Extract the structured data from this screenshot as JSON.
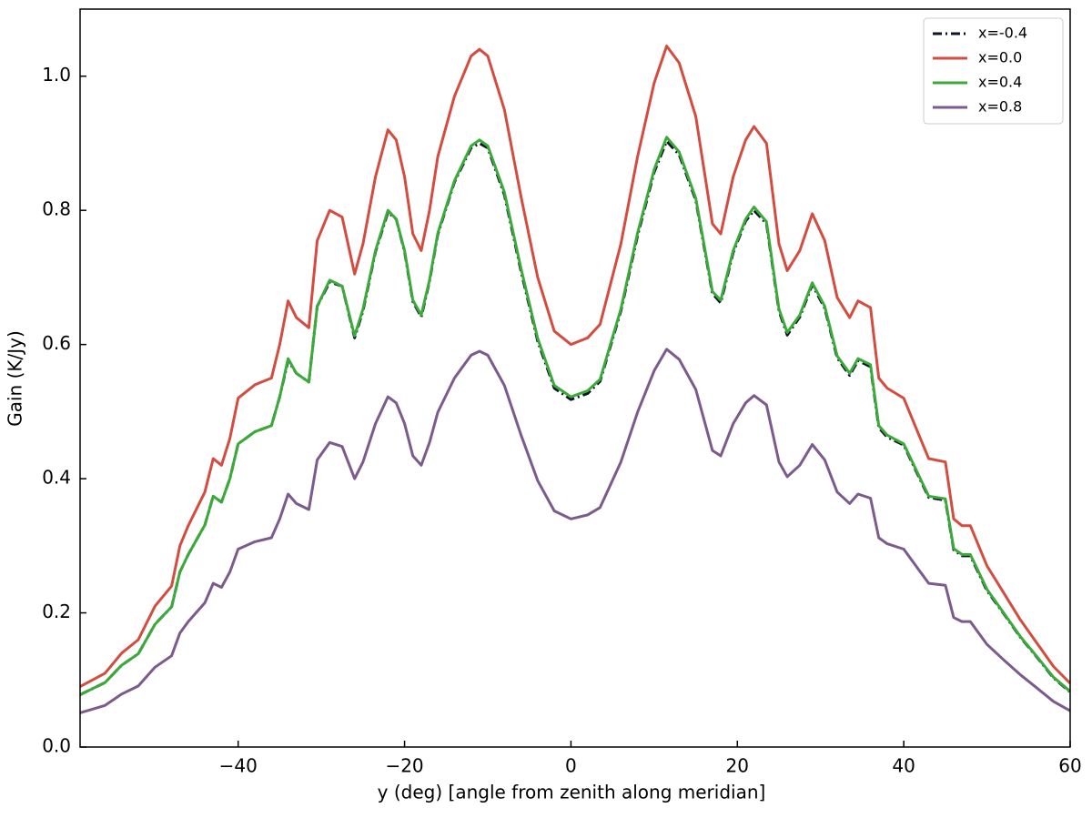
{
  "chart_data": {
    "type": "line",
    "xlabel": "y (deg) [angle from zenith along meridian]",
    "ylabel": "Gain (K/Jy)",
    "xlim": [
      -59,
      60
    ],
    "ylim": [
      0,
      1.1
    ],
    "xticks": [
      {
        "value": -40,
        "label": "−40"
      },
      {
        "value": -20,
        "label": "−20"
      },
      0,
      20,
      40,
      60
    ],
    "yticks": [
      {
        "value": 0,
        "label": "0.0"
      },
      0.2,
      0.4,
      0.6,
      0.8,
      {
        "value": 1,
        "label": "1.0"
      }
    ],
    "legend": "upper right",
    "x": [
      -59,
      -56,
      -54,
      -52,
      -50,
      -48,
      -47,
      -46,
      -44,
      -43,
      -42,
      -41,
      -40,
      -38,
      -36,
      -35,
      -34,
      -33,
      -31.5,
      -30.5,
      -29,
      -27.5,
      -26,
      -25,
      -23.5,
      -22,
      -21,
      -20,
      -19,
      -18,
      -17,
      -16,
      -14,
      -12,
      -11,
      -10,
      -8,
      -6,
      -4,
      -2,
      0,
      2,
      3.5,
      6,
      8,
      10,
      11.5,
      13,
      15,
      17,
      18,
      19.5,
      21,
      22,
      23.5,
      25,
      26,
      27.5,
      29,
      30.5,
      32,
      33.5,
      34.5,
      36,
      37,
      38,
      40,
      42,
      43,
      45,
      46,
      47,
      48,
      50,
      52,
      54,
      56,
      58,
      60
    ],
    "series": [
      {
        "name": "x=-0.4",
        "color": "#0f1428",
        "dashed": true,
        "values": [
          0.078,
          0.096,
          0.122,
          0.139,
          0.183,
          0.209,
          0.261,
          0.287,
          0.331,
          0.374,
          0.365,
          0.4,
          0.452,
          0.47,
          0.479,
          0.522,
          0.576,
          0.557,
          0.544,
          0.657,
          0.693,
          0.687,
          0.61,
          0.65,
          0.738,
          0.797,
          0.787,
          0.738,
          0.664,
          0.641,
          0.694,
          0.764,
          0.842,
          0.893,
          0.9,
          0.893,
          0.823,
          0.709,
          0.605,
          0.535,
          0.518,
          0.527,
          0.545,
          0.65,
          0.762,
          0.857,
          0.903,
          0.883,
          0.815,
          0.676,
          0.662,
          0.737,
          0.784,
          0.8,
          0.78,
          0.65,
          0.614,
          0.641,
          0.689,
          0.654,
          0.58,
          0.554,
          0.576,
          0.567,
          0.476,
          0.462,
          0.45,
          0.398,
          0.372,
          0.368,
          0.294,
          0.285,
          0.285,
          0.233,
          0.199,
          0.164,
          0.134,
          0.103,
          0.082
        ]
      },
      {
        "name": "x=0.0",
        "color": "#d44c3f",
        "dashed": false,
        "values": [
          0.09,
          0.11,
          0.14,
          0.16,
          0.21,
          0.24,
          0.3,
          0.33,
          0.38,
          0.43,
          0.42,
          0.46,
          0.52,
          0.54,
          0.55,
          0.6,
          0.665,
          0.64,
          0.625,
          0.755,
          0.8,
          0.79,
          0.705,
          0.75,
          0.85,
          0.92,
          0.905,
          0.85,
          0.765,
          0.74,
          0.8,
          0.88,
          0.97,
          1.03,
          1.04,
          1.03,
          0.95,
          0.82,
          0.7,
          0.62,
          0.6,
          0.61,
          0.63,
          0.75,
          0.88,
          0.99,
          1.045,
          1.02,
          0.94,
          0.78,
          0.765,
          0.85,
          0.905,
          0.925,
          0.9,
          0.75,
          0.71,
          0.74,
          0.795,
          0.755,
          0.67,
          0.64,
          0.665,
          0.655,
          0.55,
          0.535,
          0.52,
          0.46,
          0.43,
          0.425,
          0.34,
          0.33,
          0.33,
          0.27,
          0.23,
          0.19,
          0.155,
          0.12,
          0.095
        ]
      },
      {
        "name": "x=0.4",
        "color": "#3aaa3a",
        "dashed": false,
        "values": [
          0.078,
          0.096,
          0.122,
          0.139,
          0.183,
          0.209,
          0.261,
          0.287,
          0.331,
          0.374,
          0.365,
          0.4,
          0.452,
          0.47,
          0.479,
          0.522,
          0.579,
          0.557,
          0.544,
          0.657,
          0.696,
          0.687,
          0.613,
          0.653,
          0.74,
          0.8,
          0.787,
          0.74,
          0.666,
          0.644,
          0.696,
          0.766,
          0.844,
          0.896,
          0.905,
          0.896,
          0.827,
          0.713,
          0.609,
          0.539,
          0.522,
          0.531,
          0.548,
          0.653,
          0.766,
          0.861,
          0.909,
          0.887,
          0.818,
          0.679,
          0.666,
          0.74,
          0.787,
          0.805,
          0.783,
          0.653,
          0.618,
          0.644,
          0.692,
          0.657,
          0.583,
          0.557,
          0.579,
          0.57,
          0.479,
          0.465,
          0.452,
          0.4,
          0.374,
          0.37,
          0.296,
          0.287,
          0.287,
          0.235,
          0.2,
          0.165,
          0.135,
          0.104,
          0.083
        ]
      },
      {
        "name": "x=0.8",
        "color": "#7b5a8c",
        "dashed": false,
        "values": [
          0.051,
          0.062,
          0.079,
          0.091,
          0.119,
          0.136,
          0.17,
          0.187,
          0.215,
          0.244,
          0.238,
          0.261,
          0.295,
          0.306,
          0.312,
          0.34,
          0.377,
          0.363,
          0.354,
          0.428,
          0.454,
          0.448,
          0.4,
          0.425,
          0.482,
          0.522,
          0.513,
          0.482,
          0.434,
          0.42,
          0.454,
          0.499,
          0.55,
          0.584,
          0.59,
          0.584,
          0.539,
          0.465,
          0.397,
          0.352,
          0.34,
          0.346,
          0.357,
          0.425,
          0.499,
          0.561,
          0.593,
          0.578,
          0.533,
          0.442,
          0.434,
          0.482,
          0.513,
          0.524,
          0.51,
          0.425,
          0.403,
          0.42,
          0.451,
          0.428,
          0.38,
          0.363,
          0.377,
          0.371,
          0.312,
          0.303,
          0.295,
          0.261,
          0.244,
          0.241,
          0.193,
          0.187,
          0.187,
          0.153,
          0.13,
          0.108,
          0.088,
          0.068,
          0.054
        ]
      }
    ]
  }
}
